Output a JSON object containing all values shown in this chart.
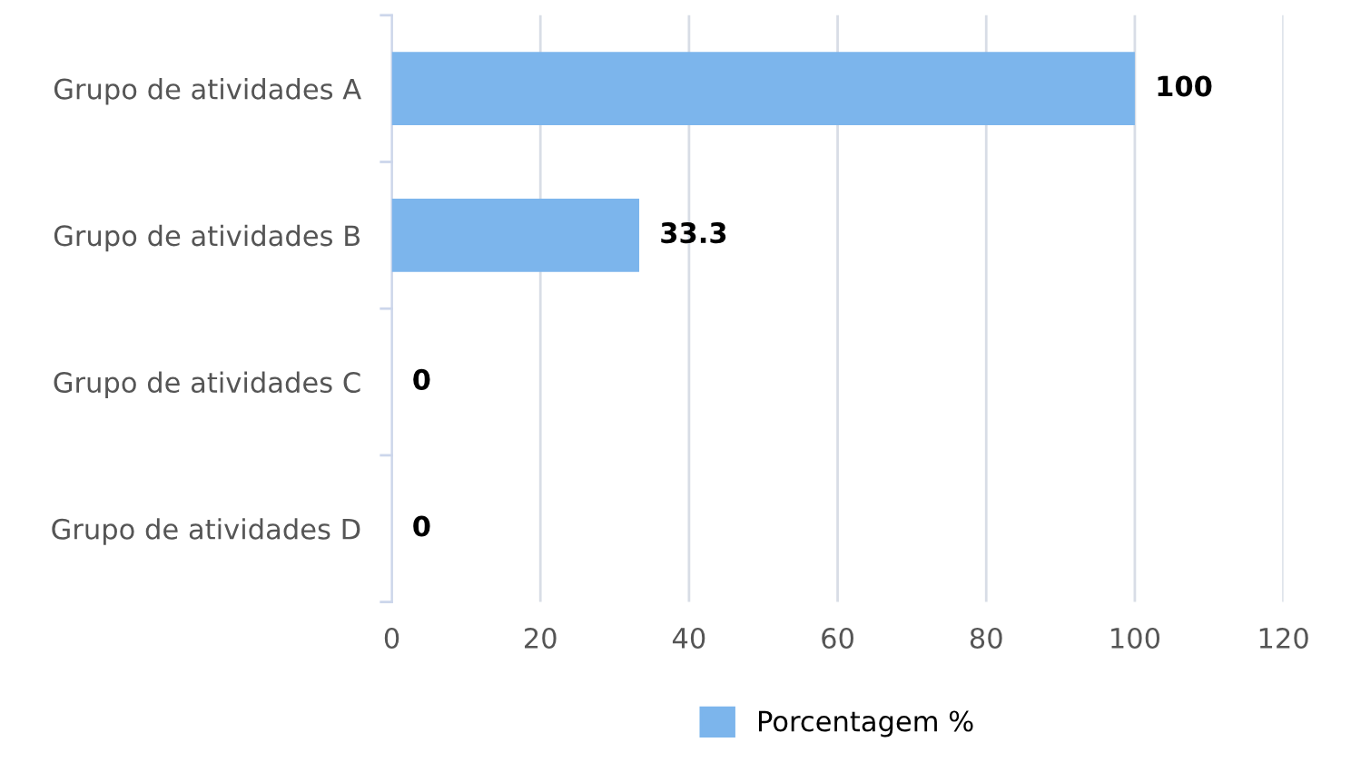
{
  "chart_data": {
    "type": "bar",
    "orientation": "horizontal",
    "categories": [
      "Grupo de atividades A",
      "Grupo de atividades B",
      "Grupo de atividades C",
      "Grupo de atividades D"
    ],
    "series": [
      {
        "name": "Porcentagem %",
        "color": "#7cb5ec",
        "values": [
          100,
          33.3,
          0,
          0
        ]
      }
    ],
    "xlim": [
      0,
      120
    ],
    "xticks": [
      0,
      20,
      40,
      60,
      80,
      100,
      120
    ],
    "grid": "x",
    "legend": "bottom",
    "data_labels": true
  }
}
